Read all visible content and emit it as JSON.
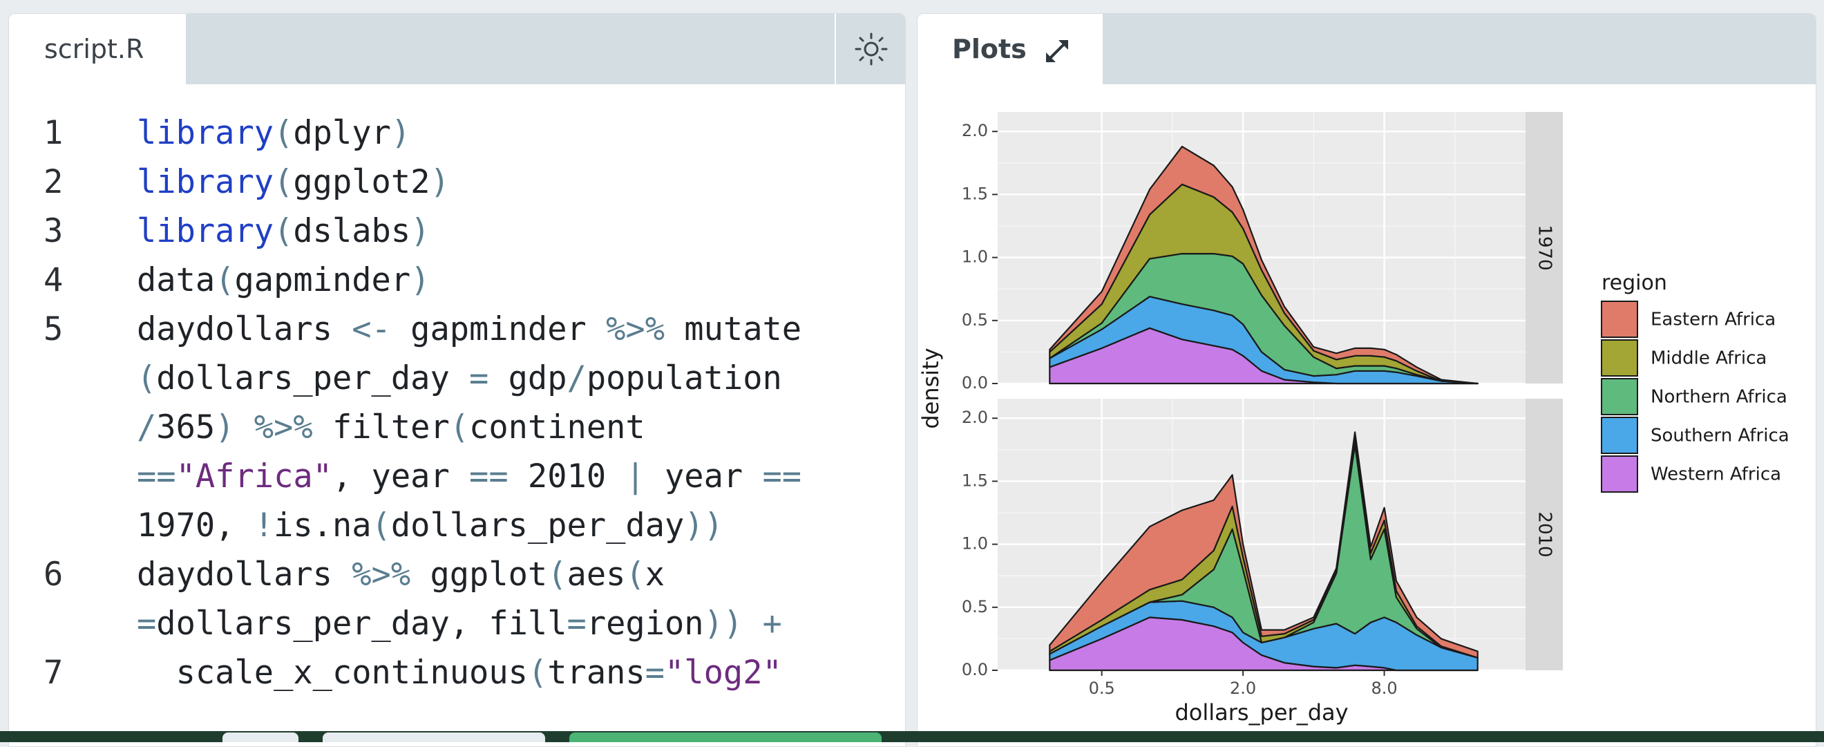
{
  "editor": {
    "tab_label": "script.R",
    "theme_icon": "sun-icon",
    "lines": [
      {
        "num": "1",
        "tokens": [
          [
            "kw",
            "library"
          ],
          [
            "pn",
            "("
          ],
          [
            "nm",
            "dplyr"
          ],
          [
            "pn",
            ")"
          ]
        ]
      },
      {
        "num": "2",
        "tokens": [
          [
            "kw",
            "library"
          ],
          [
            "pn",
            "("
          ],
          [
            "nm",
            "ggplot2"
          ],
          [
            "pn",
            ")"
          ]
        ]
      },
      {
        "num": "3",
        "tokens": [
          [
            "kw",
            "library"
          ],
          [
            "pn",
            "("
          ],
          [
            "nm",
            "dslabs"
          ],
          [
            "pn",
            ")"
          ]
        ]
      },
      {
        "num": "4",
        "tokens": [
          [
            "nm",
            "data"
          ],
          [
            "pn",
            "("
          ],
          [
            "nm",
            "gapminder"
          ],
          [
            "pn",
            ")"
          ]
        ]
      },
      {
        "num": "5",
        "tokens": [
          [
            "nm",
            "daydollars "
          ],
          [
            "op",
            "<-"
          ],
          [
            "nm",
            " gapminder "
          ],
          [
            "op",
            "%>%"
          ],
          [
            "nm",
            " mutate"
          ]
        ]
      },
      {
        "num": "",
        "tokens": [
          [
            "pn",
            "("
          ],
          [
            "nm",
            "dollars_per_day "
          ],
          [
            "op",
            "="
          ],
          [
            "nm",
            " gdp"
          ],
          [
            "op",
            "/"
          ],
          [
            "nm",
            "population"
          ]
        ]
      },
      {
        "num": "",
        "tokens": [
          [
            "op",
            "/"
          ],
          [
            "nm",
            "365"
          ],
          [
            "pn",
            ")"
          ],
          [
            "nm",
            " "
          ],
          [
            "op",
            "%>%"
          ],
          [
            "nm",
            " filter"
          ],
          [
            "pn",
            "("
          ],
          [
            "nm",
            "continent"
          ]
        ]
      },
      {
        "num": "",
        "tokens": [
          [
            "op",
            "=="
          ],
          [
            "st",
            "\"Africa\""
          ],
          [
            "nm",
            ", year "
          ],
          [
            "op",
            "=="
          ],
          [
            "nm",
            " 2010 "
          ],
          [
            "op",
            "|"
          ],
          [
            "nm",
            " year "
          ],
          [
            "op",
            "=="
          ]
        ]
      },
      {
        "num": "",
        "tokens": [
          [
            "nm",
            "1970, "
          ],
          [
            "op",
            "!"
          ],
          [
            "nm",
            "is.na"
          ],
          [
            "pn",
            "("
          ],
          [
            "nm",
            "dollars_per_day"
          ],
          [
            "pn",
            "))"
          ]
        ]
      },
      {
        "num": "6",
        "tokens": [
          [
            "nm",
            "daydollars "
          ],
          [
            "op",
            "%>%"
          ],
          [
            "nm",
            " ggplot"
          ],
          [
            "pn",
            "("
          ],
          [
            "nm",
            "aes"
          ],
          [
            "pn",
            "("
          ],
          [
            "nm",
            "x"
          ]
        ]
      },
      {
        "num": "",
        "tokens": [
          [
            "op",
            "="
          ],
          [
            "nm",
            "dollars_per_day, fill"
          ],
          [
            "op",
            "="
          ],
          [
            "nm",
            "region"
          ],
          [
            "pn",
            "))"
          ],
          [
            "nm",
            " "
          ],
          [
            "op",
            "+"
          ]
        ]
      },
      {
        "num": "7",
        "tokens": [
          [
            "nm",
            "  scale_x_continuous"
          ],
          [
            "pn",
            "("
          ],
          [
            "nm",
            "trans"
          ],
          [
            "op",
            "="
          ],
          [
            "st",
            "\"log2\""
          ]
        ]
      }
    ]
  },
  "plots": {
    "tab_label": "Plots",
    "expand_icon": "expand-icon"
  },
  "chart_data": {
    "type": "area",
    "title": "",
    "xlabel": "dollars_per_day",
    "ylabel": "density",
    "x_scale": "log2",
    "x_ticks": [
      "0.5",
      "2.0",
      "8.0"
    ],
    "y_ticks": [
      "0.0",
      "0.5",
      "1.0",
      "1.5",
      "2.0"
    ],
    "ylim": [
      0,
      2.1
    ],
    "facets": [
      "1970",
      "2010"
    ],
    "legend": {
      "title": "region",
      "position": "right"
    },
    "colors": {
      "Eastern Africa": "#e07b6a",
      "Middle Africa": "#a3a534",
      "Northern Africa": "#5fba7d",
      "Southern Africa": "#4aa7e8",
      "Western Africa": "#c77be6"
    },
    "x": [
      0.3,
      0.5,
      0.8,
      1.1,
      1.5,
      1.8,
      2.0,
      2.4,
      3.0,
      4.0,
      5.0,
      6.0,
      7.0,
      8.0,
      9.0,
      11.0,
      14.0,
      20.0
    ],
    "series": [
      {
        "name": "Western Africa",
        "1970": [
          0.13,
          0.28,
          0.44,
          0.35,
          0.3,
          0.27,
          0.22,
          0.1,
          0.03,
          0.01,
          0.0,
          0.0,
          0.0,
          0.0,
          0.0,
          0.0,
          0.0,
          0.0
        ],
        "2010": [
          0.08,
          0.25,
          0.42,
          0.4,
          0.35,
          0.3,
          0.22,
          0.12,
          0.06,
          0.03,
          0.02,
          0.04,
          0.03,
          0.02,
          0.0,
          0.0,
          0.0,
          0.0
        ]
      },
      {
        "name": "Southern Africa",
        "1970": [
          0.07,
          0.15,
          0.25,
          0.28,
          0.28,
          0.27,
          0.25,
          0.15,
          0.08,
          0.05,
          0.07,
          0.1,
          0.1,
          0.1,
          0.09,
          0.06,
          0.02,
          0.0
        ],
        "2010": [
          0.05,
          0.1,
          0.12,
          0.15,
          0.15,
          0.12,
          0.08,
          0.1,
          0.2,
          0.3,
          0.35,
          0.25,
          0.35,
          0.4,
          0.38,
          0.28,
          0.18,
          0.1
        ]
      },
      {
        "name": "Northern Africa",
        "1970": [
          0.0,
          0.05,
          0.3,
          0.4,
          0.45,
          0.47,
          0.48,
          0.45,
          0.35,
          0.15,
          0.05,
          0.04,
          0.04,
          0.04,
          0.03,
          0.01,
          0.0,
          0.0
        ],
        "2010": [
          0.0,
          0.0,
          0.0,
          0.05,
          0.3,
          0.7,
          0.5,
          0.0,
          0.0,
          0.05,
          0.4,
          1.5,
          0.5,
          0.7,
          0.2,
          0.05,
          0.0,
          0.0
        ]
      },
      {
        "name": "Middle Africa",
        "1970": [
          0.05,
          0.15,
          0.35,
          0.55,
          0.45,
          0.35,
          0.28,
          0.2,
          0.1,
          0.05,
          0.07,
          0.08,
          0.08,
          0.07,
          0.06,
          0.03,
          0.0,
          0.0
        ],
        "2010": [
          0.02,
          0.05,
          0.1,
          0.12,
          0.15,
          0.18,
          0.1,
          0.05,
          0.03,
          0.02,
          0.02,
          0.05,
          0.05,
          0.07,
          0.05,
          0.02,
          0.01,
          0.0
        ]
      },
      {
        "name": "Eastern Africa",
        "1970": [
          0.02,
          0.1,
          0.2,
          0.3,
          0.25,
          0.2,
          0.15,
          0.08,
          0.05,
          0.03,
          0.05,
          0.06,
          0.06,
          0.06,
          0.05,
          0.03,
          0.01,
          0.0
        ],
        "2010": [
          0.05,
          0.3,
          0.5,
          0.55,
          0.4,
          0.25,
          0.1,
          0.05,
          0.03,
          0.02,
          0.02,
          0.05,
          0.05,
          0.1,
          0.08,
          0.07,
          0.06,
          0.05
        ]
      }
    ]
  }
}
